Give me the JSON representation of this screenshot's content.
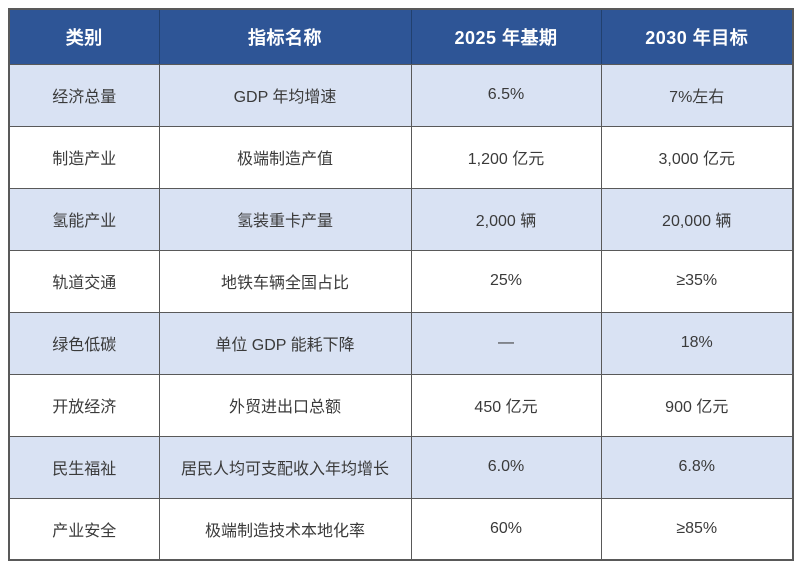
{
  "chart_data": {
    "type": "table",
    "columns": [
      "类别",
      "指标名称",
      "2025 年基期",
      "2030 年目标"
    ],
    "rows": [
      [
        "经济总量",
        "GDP 年均增速",
        "6.5%",
        "7%左右"
      ],
      [
        "制造产业",
        "极端制造产值",
        "1,200 亿元",
        "3,000 亿元"
      ],
      [
        "氢能产业",
        "氢装重卡产量",
        "2,000 辆",
        "20,000 辆"
      ],
      [
        "轨道交通",
        "地铁车辆全国占比",
        "25%",
        "≥35%"
      ],
      [
        "绿色低碳",
        "单位 GDP 能耗下降",
        "—",
        "18%"
      ],
      [
        "开放经济",
        "外贸进出口总额",
        "450 亿元",
        "900 亿元"
      ],
      [
        "民生福祉",
        "居民人均可支配收入年均增长",
        "6.0%",
        "6.8%"
      ],
      [
        "产业安全",
        "极端制造技术本地化率",
        "60%",
        "≥85%"
      ]
    ],
    "layout_hints": {
      "header_style": "bold white on dark blue",
      "row_striping": "odd rows light blue, even rows white",
      "alignment": "all cells centered"
    }
  },
  "colors": {
    "header_bg": "#2E5596",
    "header_text": "#FFFFFF",
    "header_divider": "#21406F",
    "row_alt_bg": "#D9E2F3",
    "row_bg": "#FFFFFF",
    "border": "#595959",
    "text": "#3A3A3A"
  }
}
